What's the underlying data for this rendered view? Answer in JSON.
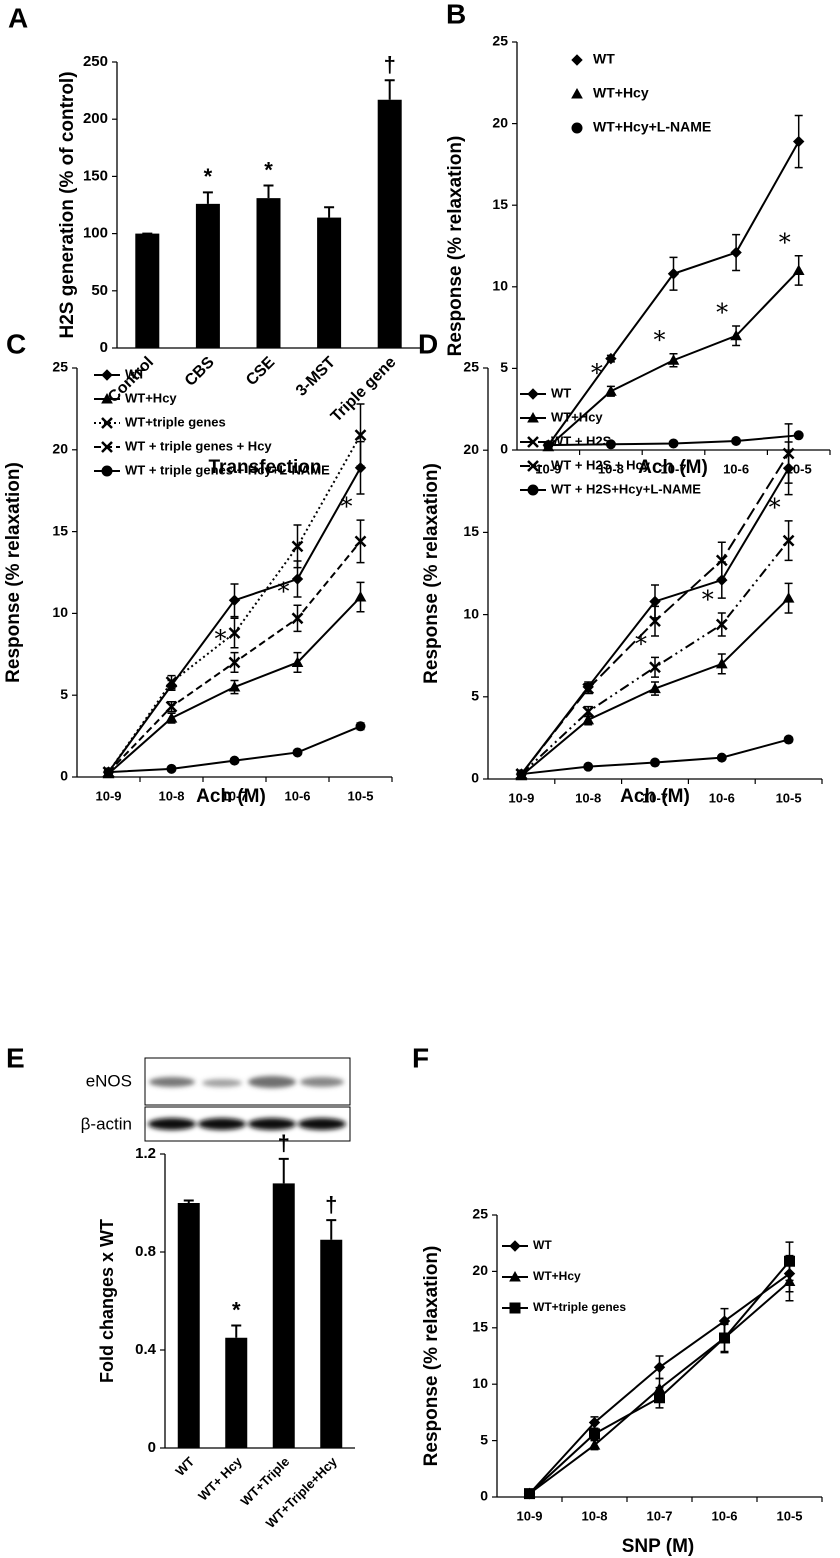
{
  "chart_data": [
    {
      "type": "bar",
      "panel": "A",
      "ylabel": "H2S generation (% of control)",
      "xlabel": "Transfection",
      "categories": [
        "Control",
        "CBS",
        "CSE",
        "3-MST",
        "Triple gene"
      ],
      "values": [
        100,
        126,
        131,
        114,
        217
      ],
      "errors": [
        0,
        10,
        11,
        9,
        17
      ],
      "annotations": [
        null,
        "*",
        "*",
        null,
        "†"
      ],
      "color": "#000000",
      "ylim": [
        0,
        250
      ],
      "yticks": [
        0,
        50,
        100,
        150,
        200,
        250
      ]
    },
    {
      "type": "line",
      "panel": "B",
      "ylabel": "Response (% relaxation)",
      "xlabel": "Ach (M)",
      "categories": [
        "10-9",
        "10-8",
        "10-7",
        "10-6",
        "10-5"
      ],
      "ylim": [
        0,
        25
      ],
      "yticks": [
        0,
        5,
        10,
        15,
        20,
        25
      ],
      "series": [
        {
          "name": "WT",
          "color": "#000000",
          "marker": "diamond",
          "line_style": "solid",
          "values": [
            0.3,
            5.6,
            10.8,
            12.1,
            18.9
          ],
          "errors": [
            0,
            0.2,
            1.0,
            1.1,
            1.6
          ]
        },
        {
          "name": "WT+Hcy",
          "color": "#000000",
          "marker": "triangle",
          "line_style": "solid",
          "values": [
            0.2,
            3.6,
            5.5,
            7.0,
            11.0
          ],
          "errors": [
            0,
            0.3,
            0.4,
            0.6,
            0.9
          ],
          "annotations": [
            null,
            "*",
            "*",
            "*",
            "*"
          ]
        },
        {
          "name": "WT+Hcy+L-NAME",
          "color": "#000000",
          "marker": "circle",
          "line_style": "solid",
          "values": [
            0.3,
            0.35,
            0.4,
            0.55,
            0.9
          ],
          "errors": [
            0,
            0,
            0,
            0,
            0
          ]
        }
      ]
    },
    {
      "type": "line",
      "panel": "C",
      "ylabel": "Response (% relaxation)",
      "xlabel": "Ach (M)",
      "categories": [
        "10-9",
        "10-8",
        "10-7",
        "10-6",
        "10-5"
      ],
      "ylim": [
        0,
        25
      ],
      "yticks": [
        0,
        5,
        10,
        15,
        20,
        25
      ],
      "series": [
        {
          "name": "WT",
          "color": "#000000",
          "marker": "diamond",
          "line_style": "solid",
          "values": [
            0.3,
            5.6,
            10.8,
            12.1,
            18.9
          ],
          "errors": [
            0,
            0.3,
            1.0,
            1.1,
            1.6
          ]
        },
        {
          "name": "WT+Hcy",
          "color": "#000000",
          "marker": "triangle",
          "line_style": "solid",
          "values": [
            0.2,
            3.6,
            5.5,
            7.0,
            11.0
          ],
          "errors": [
            0,
            0.3,
            0.4,
            0.6,
            0.9
          ]
        },
        {
          "name": "WT+triple genes",
          "color": "#000000",
          "marker": "x",
          "line_style": "dotted",
          "values": [
            0.3,
            5.8,
            8.8,
            14.1,
            20.9
          ],
          "errors": [
            0,
            0.4,
            0.9,
            1.3,
            1.9
          ]
        },
        {
          "name": "WT + triple genes + Hcy",
          "color": "#000000",
          "marker": "x",
          "line_style": "dashed",
          "values": [
            0.3,
            4.3,
            7.0,
            9.7,
            14.4
          ],
          "errors": [
            0,
            0.3,
            0.6,
            0.8,
            1.3
          ],
          "annotations": [
            null,
            null,
            "*",
            "*",
            "*"
          ]
        },
        {
          "name": "WT + triple genes + Hcy+L-NAME",
          "color": "#000000",
          "marker": "circle",
          "line_style": "solid",
          "values": [
            0.3,
            0.5,
            1.0,
            1.5,
            3.1
          ],
          "errors": [
            0,
            0,
            0,
            0,
            0.2
          ]
        }
      ]
    },
    {
      "type": "line",
      "panel": "D",
      "ylabel": "Response (% relaxation)",
      "xlabel": "Ach (M)",
      "categories": [
        "10-9",
        "10-8",
        "10-7",
        "10-6",
        "10-5"
      ],
      "ylim": [
        0,
        25
      ],
      "yticks": [
        0,
        5,
        10,
        15,
        20,
        25
      ],
      "series": [
        {
          "name": "WT",
          "color": "#000000",
          "marker": "diamond",
          "line_style": "solid",
          "values": [
            0.3,
            5.6,
            10.8,
            12.1,
            18.9
          ],
          "errors": [
            0,
            0.3,
            1.0,
            1.1,
            1.6
          ]
        },
        {
          "name": "WT+Hcy",
          "color": "#000000",
          "marker": "triangle",
          "line_style": "solid",
          "values": [
            0.2,
            3.6,
            5.5,
            7.0,
            11.0
          ],
          "errors": [
            0,
            0.3,
            0.4,
            0.6,
            0.9
          ]
        },
        {
          "name": "WT + H2S",
          "color": "#000000",
          "marker": "x",
          "line_style": "longdash",
          "values": [
            0.3,
            5.5,
            9.6,
            13.3,
            19.8
          ],
          "errors": [
            0,
            0.3,
            0.9,
            1.1,
            1.8
          ]
        },
        {
          "name": "WT + H2S + Hcy",
          "color": "#000000",
          "marker": "x",
          "line_style": "dashdotdot",
          "values": [
            0.3,
            4.1,
            6.8,
            9.4,
            14.5
          ],
          "errors": [
            0,
            0.3,
            0.6,
            0.7,
            1.2
          ],
          "annotations": [
            null,
            null,
            "*",
            "*",
            "*"
          ]
        },
        {
          "name": "WT + H2S+Hcy+L-NAME",
          "color": "#000000",
          "marker": "circle",
          "line_style": "solid",
          "values": [
            0.3,
            0.75,
            1.0,
            1.3,
            2.4
          ],
          "errors": [
            0,
            0,
            0,
            0,
            0.15
          ]
        }
      ]
    },
    {
      "type": "bar",
      "panel": "E",
      "ylabel": "Fold changes x WT",
      "blot_labels": [
        "eNOS",
        "β-actin"
      ],
      "categories": [
        "WT",
        "WT+ Hcy",
        "WT+Triple",
        "WT+Triple+Hcy"
      ],
      "values": [
        1.0,
        0.45,
        1.08,
        0.85
      ],
      "errors": [
        0.01,
        0.05,
        0.1,
        0.08
      ],
      "annotations": [
        null,
        "*",
        "†",
        "†"
      ],
      "color": "#000000",
      "ylim": [
        0,
        1.2
      ],
      "yticks": [
        0,
        0.4,
        0.8,
        1.2
      ]
    },
    {
      "type": "line",
      "panel": "F",
      "ylabel": "Response (% relaxation)",
      "xlabel": "SNP (M)",
      "categories": [
        "10-9",
        "10-8",
        "10-7",
        "10-6",
        "10-5"
      ],
      "ylim": [
        0,
        25
      ],
      "yticks": [
        0,
        5,
        10,
        15,
        20,
        25
      ],
      "series": [
        {
          "name": "WT",
          "color": "#000000",
          "marker": "diamond",
          "line_style": "solid",
          "values": [
            0.3,
            6.6,
            11.5,
            15.6,
            19.8
          ],
          "errors": [
            0,
            0.5,
            1.0,
            1.1,
            1.6
          ]
        },
        {
          "name": "WT+Hcy",
          "color": "#000000",
          "marker": "triangle",
          "line_style": "solid",
          "values": [
            0.3,
            4.6,
            9.6,
            14.1,
            19.1
          ],
          "errors": [
            0,
            0.4,
            0.9,
            1.2,
            1.7
          ]
        },
        {
          "name": "WT+triple genes",
          "color": "#000000",
          "marker": "square",
          "line_style": "solid",
          "values": [
            0.3,
            5.6,
            8.8,
            14.1,
            20.9
          ],
          "errors": [
            0,
            0.5,
            0.9,
            1.3,
            1.7
          ]
        }
      ]
    }
  ]
}
